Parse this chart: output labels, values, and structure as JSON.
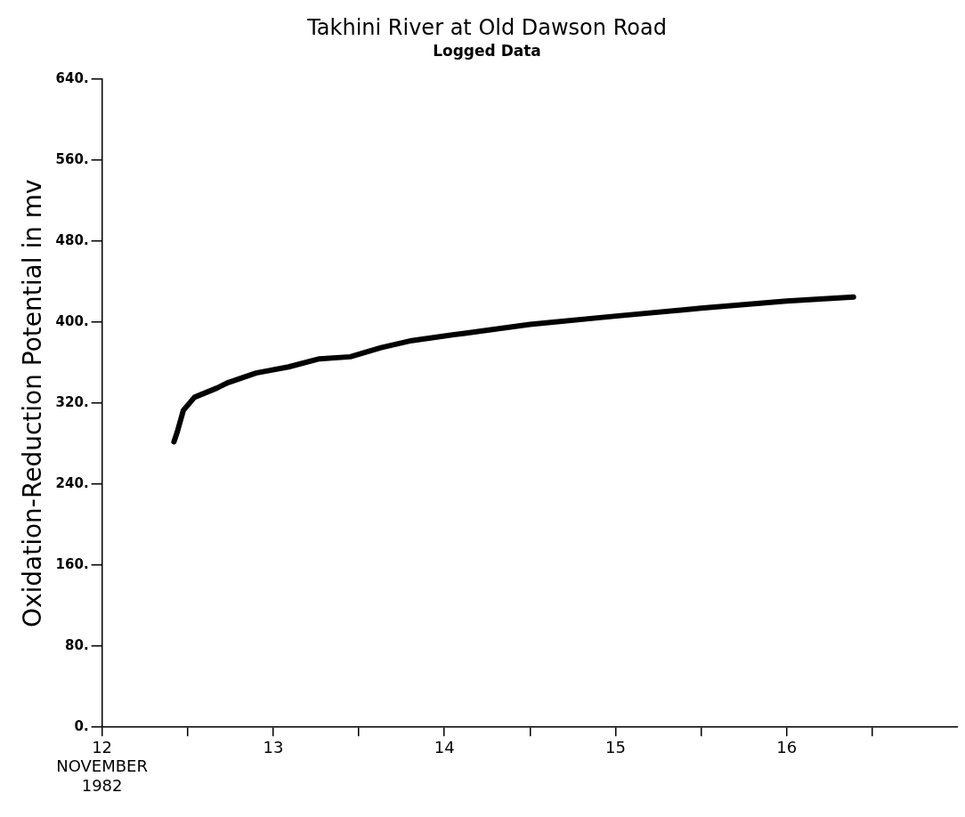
{
  "chart_data": {
    "type": "line",
    "title": "Takhini River at Old Dawson Road",
    "subtitle": "Logged Data",
    "ylabel": "Oxidation-Reduction Potential in mv",
    "color": "#000000",
    "x": [
      12.42,
      12.44,
      12.475,
      12.54,
      12.67,
      12.73,
      12.9,
      13.09,
      13.27,
      13.45,
      13.63,
      13.81,
      14.02,
      14.11,
      14.5,
      14.99,
      15.5,
      16.0,
      16.39
    ],
    "values": [
      282,
      292,
      313,
      326,
      335,
      340,
      350,
      356,
      364,
      366,
      375,
      382,
      387,
      389,
      398,
      406,
      414,
      421,
      425
    ],
    "xlim": [
      12,
      17
    ],
    "xticks": [
      {
        "value": 12,
        "label": "12\nNOVEMBER\n1982"
      },
      {
        "value": 12.5,
        "label": null
      },
      {
        "value": 13,
        "label": "13"
      },
      {
        "value": 13.5,
        "label": null
      },
      {
        "value": 14,
        "label": "14"
      },
      {
        "value": 14.5,
        "label": null
      },
      {
        "value": 15,
        "label": "15"
      },
      {
        "value": 15.5,
        "label": null
      },
      {
        "value": 16,
        "label": "16"
      },
      {
        "value": 16.5,
        "label": null
      }
    ],
    "ylim": [
      0,
      640
    ],
    "yticks": [
      {
        "value": 0,
        "label": "0."
      },
      {
        "value": 80,
        "label": "80."
      },
      {
        "value": 160,
        "label": "160."
      },
      {
        "value": 240,
        "label": "240."
      },
      {
        "value": 320,
        "label": "320."
      },
      {
        "value": 400,
        "label": "400."
      },
      {
        "value": 480,
        "label": "480."
      },
      {
        "value": 560,
        "label": "560."
      },
      {
        "value": 640,
        "label": "640."
      }
    ],
    "grid": false,
    "legend": false
  }
}
